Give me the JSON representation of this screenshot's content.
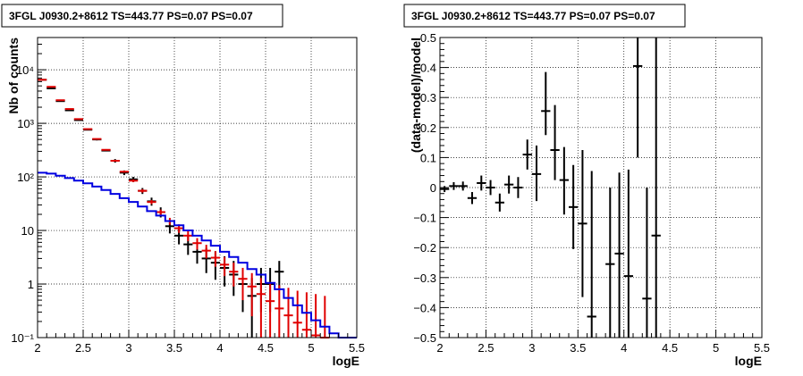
{
  "chart_data": [
    {
      "type": "scatter",
      "title": "3FGL J0930.2+8612 TS=443.77 PS=0.07 PS=0.07",
      "xlabel": "logE",
      "ylabel": "Nb of counts",
      "xlim": [
        2,
        5.5
      ],
      "ylim": [
        0.1,
        40000
      ],
      "yscale": "log",
      "grid": true,
      "xticks": [
        2,
        2.5,
        3,
        3.5,
        4,
        4.5,
        5,
        5.5
      ],
      "xtick_labels": [
        "2",
        "2.5",
        "3",
        "3.5",
        "4",
        "4.5",
        "5",
        "5.5"
      ],
      "yticks": [
        0.1,
        1,
        10,
        100,
        1000,
        10000
      ],
      "ytick_labels": [
        "10⁻¹",
        "1",
        "10",
        "10²",
        "10³",
        "10⁴"
      ],
      "bin_width": 0.1,
      "series": [
        {
          "color": "#000000",
          "style": "errorbar",
          "x": [
            2.05,
            2.15,
            2.25,
            2.35,
            2.45,
            2.55,
            2.65,
            2.75,
            2.85,
            2.95,
            3.05,
            3.15,
            3.25,
            3.35,
            3.45,
            3.55,
            3.65,
            3.75,
            3.85,
            3.95,
            4.05,
            4.15,
            4.25,
            4.35,
            4.45,
            4.55,
            4.65
          ],
          "y": [
            6500,
            4500,
            2600,
            1750,
            1150,
            760,
            500,
            310,
            200,
            120,
            90,
            55,
            35,
            22,
            12,
            8,
            5.5,
            4,
            3,
            2.5,
            2,
            1.5,
            1,
            0.6,
            1,
            1,
            1.7
          ],
          "y_low": [
            6420,
            4440,
            2550,
            1710,
            1120,
            740,
            480,
            300,
            185,
            108,
            80,
            48,
            29,
            17.5,
            8.8,
            5.5,
            3.5,
            2.4,
            1.6,
            1.2,
            0.9,
            0.6,
            0.3,
            0.1,
            0.3,
            0.3,
            0.8
          ],
          "y_high": [
            6580,
            4560,
            2650,
            1790,
            1180,
            790,
            520,
            330,
            215,
            132,
            100,
            62,
            41,
            27,
            15.5,
            11,
            7.8,
            6,
            4.7,
            4.1,
            3.3,
            2.7,
            2,
            1.3,
            2,
            2,
            2.7
          ]
        },
        {
          "color": "#e00000",
          "style": "errorbar",
          "x": [
            2.05,
            2.15,
            2.25,
            2.35,
            2.45,
            2.55,
            2.65,
            2.75,
            2.85,
            2.95,
            3.05,
            3.15,
            3.25,
            3.35,
            3.45,
            3.55,
            3.65,
            3.75,
            3.85,
            3.95,
            4.05,
            4.15,
            4.25,
            4.35,
            4.45,
            4.55,
            4.65,
            4.75,
            4.85,
            4.95,
            5.05,
            5.15
          ],
          "y": [
            6500,
            4800,
            2700,
            1850,
            1200,
            780,
            510,
            320,
            200,
            125,
            85,
            55,
            34,
            22,
            15,
            11,
            8,
            5.8,
            4.2,
            3.1,
            2.3,
            1.7,
            1.25,
            0.9,
            0.65,
            0.48,
            0.35,
            0.26,
            0.19,
            0.14,
            0.11,
            0.1
          ],
          "y_low": [
            6450,
            4760,
            2670,
            1830,
            1180,
            765,
            500,
            312,
            194,
            120,
            80,
            51,
            31,
            19.5,
            12.8,
            9,
            6.3,
            4.4,
            3,
            2.1,
            1.4,
            0.9,
            0.5,
            0.25,
            0.1,
            0.1,
            0.1,
            0.1,
            0.1,
            0.1,
            0.1,
            0.1
          ],
          "y_high": [
            6550,
            4840,
            2730,
            1870,
            1220,
            795,
            520,
            328,
            206,
            130,
            90,
            59,
            37,
            24.5,
            17.2,
            13,
            9.7,
            7.2,
            5.4,
            4.1,
            3.2,
            2.5,
            2,
            1.6,
            1.3,
            1.1,
            0.95,
            0.85,
            0.75,
            0.7,
            0.65,
            0.6
          ]
        },
        {
          "color": "#0000e0",
          "style": "step",
          "x": [
            2.05,
            2.15,
            2.25,
            2.35,
            2.45,
            2.55,
            2.65,
            2.75,
            2.85,
            2.95,
            3.05,
            3.15,
            3.25,
            3.35,
            3.45,
            3.55,
            3.65,
            3.75,
            3.85,
            3.95,
            4.05,
            4.15,
            4.25,
            4.35,
            4.45,
            4.55,
            4.65,
            4.75,
            4.85,
            4.95,
            5.05,
            5.15,
            5.25,
            5.35,
            5.45
          ],
          "y": [
            120,
            115,
            105,
            95,
            85,
            76,
            66,
            57,
            48,
            40,
            34,
            28,
            23,
            19,
            15,
            12.5,
            10,
            8,
            6.5,
            5.2,
            4,
            3.2,
            2.5,
            1.9,
            1.5,
            1.05,
            0.8,
            0.55,
            0.4,
            0.29,
            0.21,
            0.16,
            0.12,
            0.1,
            0.1
          ]
        }
      ]
    },
    {
      "type": "scatter",
      "title": "3FGL J0930.2+8612 TS=443.77 PS=0.07 PS=0.07",
      "xlabel": "logE",
      "ylabel": "(data-model)/model",
      "xlim": [
        2,
        5.5
      ],
      "ylim": [
        -0.5,
        0.5
      ],
      "yscale": "linear",
      "grid": true,
      "xticks": [
        2,
        2.5,
        3,
        3.5,
        4,
        4.5,
        5,
        5.5
      ],
      "xtick_labels": [
        "2",
        "2.5",
        "3",
        "3.5",
        "4",
        "4.5",
        "5",
        "5.5"
      ],
      "yticks": [
        -0.5,
        -0.4,
        -0.3,
        -0.2,
        -0.1,
        0,
        0.1,
        0.2,
        0.3,
        0.4,
        0.5
      ],
      "ytick_labels": [
        "−0.5",
        "−0.4",
        "−0.3",
        "−0.2",
        "−0.1",
        "0",
        "0.1",
        "0.2",
        "0.3",
        "0.4",
        "0.5"
      ],
      "bin_width": 0.1,
      "series": [
        {
          "color": "#000000",
          "style": "errorbar",
          "x": [
            2.05,
            2.15,
            2.25,
            2.35,
            2.45,
            2.55,
            2.65,
            2.75,
            2.85,
            2.95,
            3.05,
            3.15,
            3.25,
            3.35,
            3.45,
            3.55,
            3.65,
            3.85,
            3.95,
            4.05,
            4.15,
            4.25,
            4.35
          ],
          "y": [
            -0.005,
            0.005,
            0.005,
            -0.035,
            0.015,
            0.0,
            -0.05,
            0.01,
            0.0,
            0.11,
            0.045,
            0.255,
            0.125,
            0.025,
            -0.065,
            -0.12,
            -0.43,
            -0.255,
            -0.22,
            -0.295,
            0.405,
            -0.37,
            -0.16
          ],
          "y_low": [
            -0.015,
            -0.008,
            -0.01,
            -0.055,
            -0.01,
            -0.025,
            -0.08,
            -0.02,
            -0.035,
            0.06,
            -0.045,
            0.175,
            0.025,
            -0.09,
            -0.205,
            -0.365,
            -0.5,
            -0.5,
            -0.5,
            -0.5,
            0.1,
            -0.5,
            -0.5
          ],
          "y_high": [
            0.005,
            0.018,
            0.02,
            -0.015,
            0.04,
            0.025,
            -0.02,
            0.04,
            0.035,
            0.16,
            0.14,
            0.385,
            0.275,
            0.135,
            0.075,
            0.125,
            0.055,
            0.0,
            0.05,
            0.06,
            0.5,
            0.0,
            0.5
          ]
        }
      ]
    }
  ]
}
